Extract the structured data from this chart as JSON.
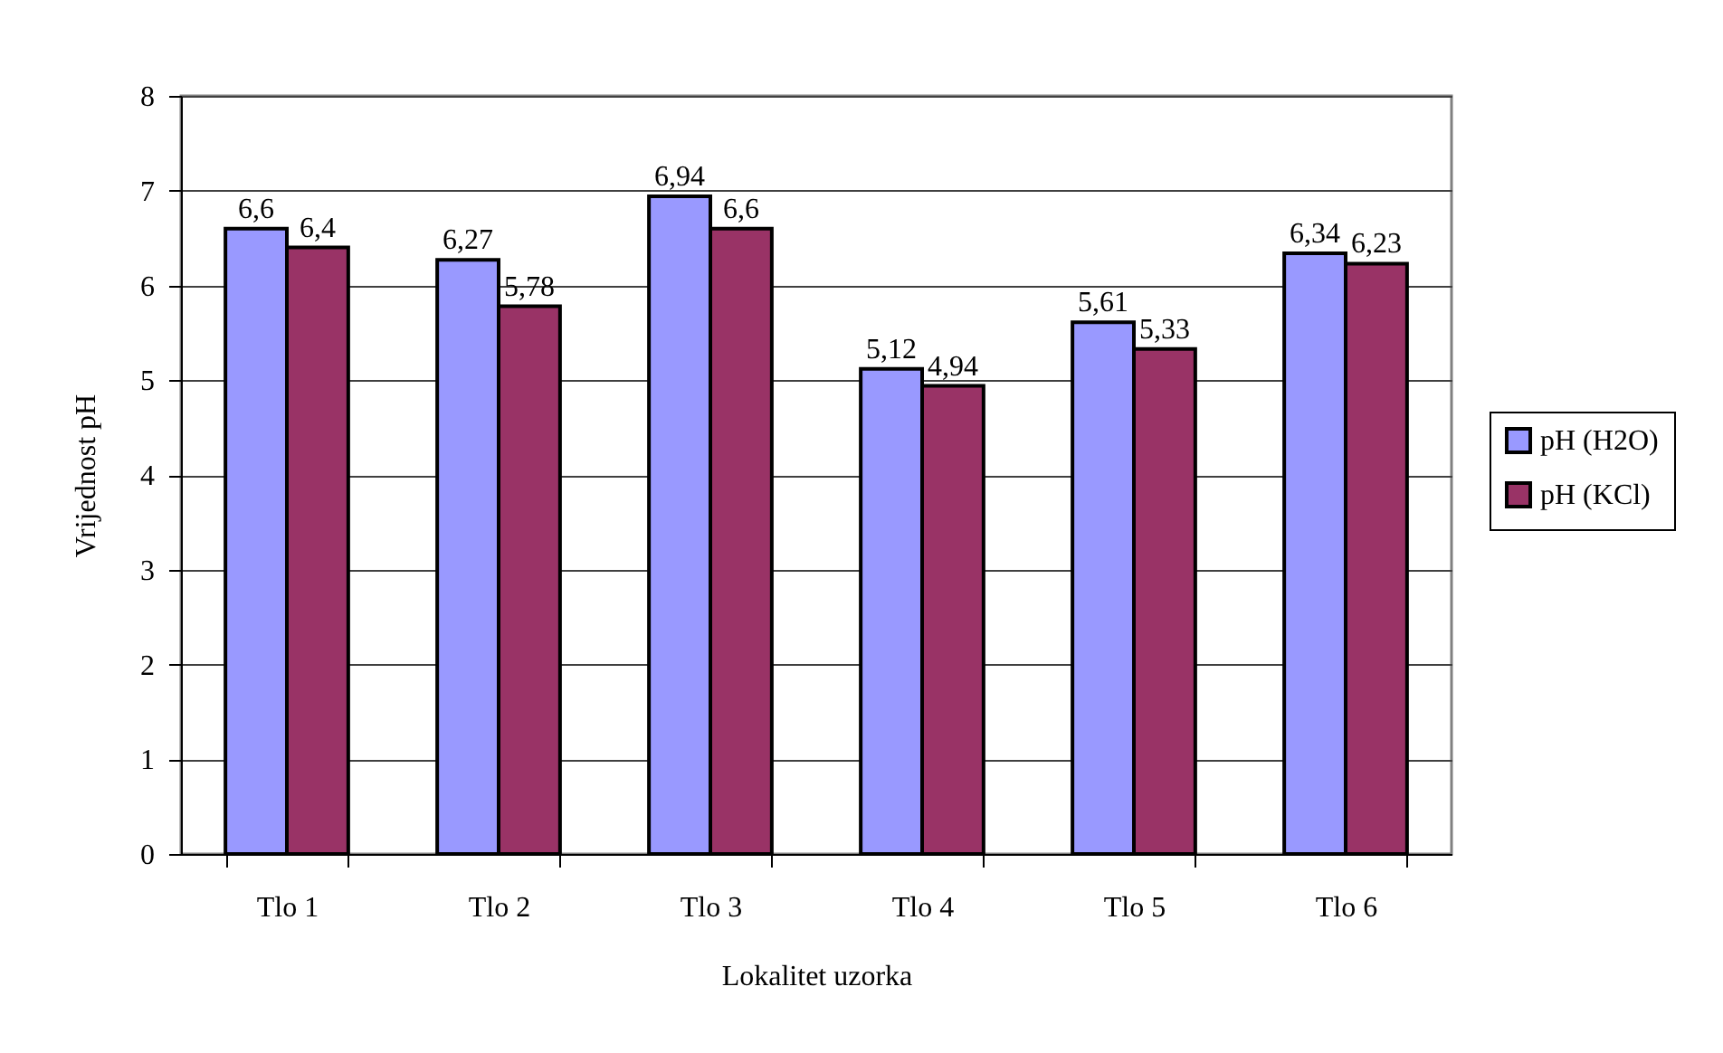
{
  "chart_data": {
    "type": "bar",
    "xlabel": "Lokalitet uzorka",
    "ylabel": "Vrijednost pH",
    "categories": [
      "Tlo 1",
      "Tlo 2",
      "Tlo 3",
      "Tlo 4",
      "Tlo 5",
      "Tlo 6"
    ],
    "series": [
      {
        "name": "pH (H2O)",
        "color": "#9999ff",
        "values": [
          6.6,
          6.27,
          6.94,
          5.12,
          5.61,
          6.34
        ],
        "value_labels": [
          "6,6",
          "6,27",
          "6,94",
          "5,12",
          "5,61",
          "6,34"
        ]
      },
      {
        "name": "pH (KCl)",
        "color": "#993366",
        "values": [
          6.4,
          5.78,
          6.6,
          4.94,
          5.33,
          6.23
        ],
        "value_labels": [
          "6,4",
          "5,78",
          "6,6",
          "4,94",
          "5,33",
          "6,23"
        ]
      }
    ],
    "ylim": [
      0,
      8
    ],
    "yticks": [
      0,
      1,
      2,
      3,
      4,
      5,
      6,
      7,
      8
    ],
    "grid": "y",
    "legend": "right"
  }
}
